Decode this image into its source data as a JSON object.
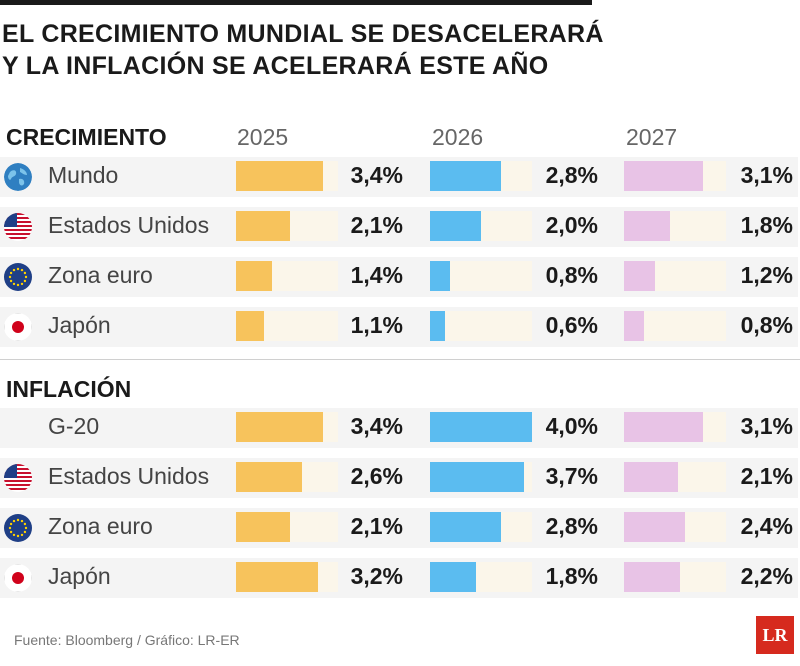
{
  "title_line1": "EL CRECIMIENTO MUNDIAL SE DESACELERARÁ",
  "title_line2": "Y LA INFLACIÓN SE ACELERARÁ ESTE AÑO",
  "years": [
    "2025",
    "2026",
    "2027"
  ],
  "colors": {
    "2025": "#f7c35c",
    "2026": "#5bbcf0",
    "2027": "#e8c3e6",
    "track": "#fbf6ea",
    "row_bg": "#f4f4f4"
  },
  "source": "Fuente: Bloomberg / Gráfico: LR-ER",
  "logo_text": "LR",
  "chart_data": [
    {
      "type": "bar",
      "section": "CRECIMIENTO",
      "categories": [
        "Mundo",
        "Estados Unidos",
        "Zona euro",
        "Japón"
      ],
      "icons": [
        "globe-icon",
        "us-flag-icon",
        "eu-flag-icon",
        "japan-flag-icon"
      ],
      "series": [
        {
          "name": "2025",
          "values": [
            3.4,
            2.1,
            1.4,
            1.1
          ],
          "labels": [
            "3,4%",
            "2,1%",
            "1,4%",
            "1,1%"
          ]
        },
        {
          "name": "2026",
          "values": [
            2.8,
            2.0,
            0.8,
            0.6
          ],
          "labels": [
            "2,8%",
            "2,0%",
            "0,8%",
            "0,6%"
          ]
        },
        {
          "name": "2027",
          "values": [
            3.1,
            1.8,
            1.2,
            0.8
          ],
          "labels": [
            "3,1%",
            "1,8%",
            "1,2%",
            "0,8%"
          ]
        }
      ]
    },
    {
      "type": "bar",
      "section": "INFLACIÓN",
      "categories": [
        "G-20",
        "Estados Unidos",
        "Zona euro",
        "Japón"
      ],
      "icons": [
        "",
        "us-flag-icon",
        "eu-flag-icon",
        "japan-flag-icon"
      ],
      "series": [
        {
          "name": "2025",
          "values": [
            3.4,
            2.6,
            2.1,
            3.2
          ],
          "labels": [
            "3,4%",
            "2,6%",
            "2,1%",
            "3,2%"
          ]
        },
        {
          "name": "2026",
          "values": [
            4.0,
            3.7,
            2.8,
            1.8
          ],
          "labels": [
            "4,0%",
            "3,7%",
            "2,8%",
            "1,8%"
          ]
        },
        {
          "name": "2027",
          "values": [
            3.1,
            2.1,
            2.4,
            2.2
          ],
          "labels": [
            "3,1%",
            "2,1%",
            "2,4%",
            "2,2%"
          ]
        }
      ]
    }
  ]
}
